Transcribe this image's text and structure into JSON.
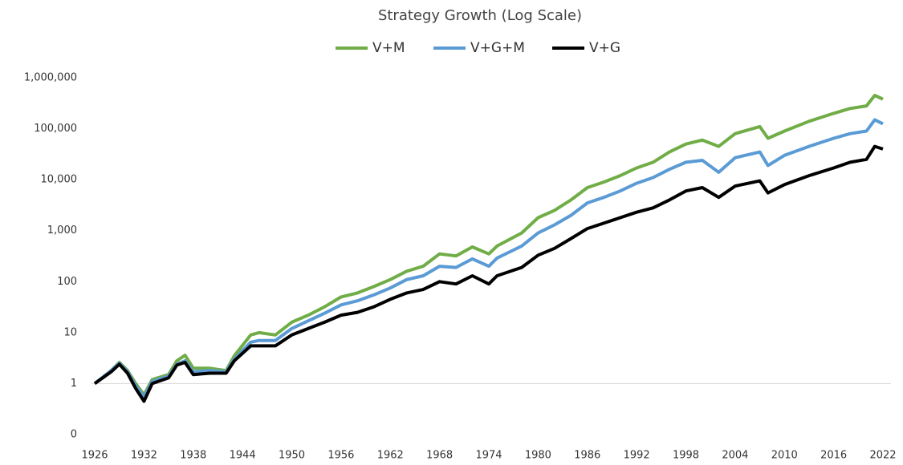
{
  "chart_data": {
    "type": "line",
    "title": "Strategy Growth (Log Scale)",
    "log_scale": true,
    "legend": "top",
    "x_axis_crosses": 1,
    "x": [
      1926,
      1928,
      1929,
      1930,
      1931,
      1932,
      1933,
      1935,
      1936,
      1937,
      1938,
      1940,
      1942,
      1943,
      1945,
      1946,
      1948,
      1950,
      1952,
      1954,
      1956,
      1958,
      1960,
      1962,
      1964,
      1966,
      1968,
      1970,
      1972,
      1974,
      1975,
      1978,
      1980,
      1982,
      1984,
      1986,
      1988,
      1990,
      1992,
      1994,
      1996,
      1998,
      2000,
      2002,
      2004,
      2007,
      2008,
      2010,
      2013,
      2016,
      2018,
      2020,
      2021,
      2022
    ],
    "xlim": [
      1926,
      2022
    ],
    "xticks": [
      1926,
      1932,
      1938,
      1944,
      1950,
      1956,
      1962,
      1968,
      1974,
      1980,
      1986,
      1992,
      1998,
      2004,
      2010,
      2016,
      2022
    ],
    "ylim": [
      0.1,
      1000000
    ],
    "yticks": [
      {
        "value": 0.1,
        "label": "0"
      },
      1,
      10,
      100,
      {
        "value": 1000,
        "label": "1,000"
      },
      {
        "value": 10000,
        "label": "10,000"
      },
      {
        "value": 100000,
        "label": "100,000"
      },
      {
        "value": 1000000,
        "label": "1,000,000"
      }
    ],
    "series": [
      {
        "name": "V+M",
        "color": "#70ad47",
        "values": [
          1,
          1.8,
          2.6,
          1.8,
          1.0,
          0.6,
          1.2,
          1.5,
          2.8,
          3.6,
          2.0,
          2.0,
          1.8,
          3.5,
          9,
          10,
          9,
          16,
          22,
          32,
          50,
          60,
          80,
          110,
          160,
          200,
          350,
          320,
          480,
          350,
          500,
          900,
          1800,
          2500,
          4000,
          7000,
          9000,
          12000,
          17000,
          22000,
          35000,
          50000,
          60000,
          45000,
          80000,
          110000,
          65000,
          90000,
          140000,
          200000,
          250000,
          280000,
          450000,
          380000
        ]
      },
      {
        "name": "V+G+M",
        "color": "#5b9bd5",
        "values": [
          1,
          1.8,
          2.5,
          1.7,
          0.9,
          0.55,
          1.1,
          1.4,
          2.4,
          2.8,
          1.7,
          1.8,
          1.7,
          3.0,
          6.5,
          7,
          7,
          12,
          17,
          24,
          35,
          42,
          55,
          75,
          110,
          130,
          200,
          190,
          280,
          200,
          290,
          500,
          900,
          1300,
          2000,
          3500,
          4500,
          6000,
          8500,
          11000,
          16000,
          22000,
          24000,
          14000,
          27000,
          35000,
          19000,
          30000,
          45000,
          65000,
          80000,
          90000,
          150000,
          125000
        ]
      },
      {
        "name": "V+G",
        "color": "#000000",
        "values": [
          1,
          1.7,
          2.4,
          1.6,
          0.8,
          0.45,
          1.0,
          1.3,
          2.3,
          2.6,
          1.5,
          1.6,
          1.6,
          2.8,
          5.5,
          5.5,
          5.5,
          9,
          12,
          16,
          22,
          25,
          32,
          45,
          60,
          70,
          100,
          90,
          130,
          90,
          130,
          190,
          330,
          450,
          700,
          1100,
          1400,
          1800,
          2300,
          2800,
          4000,
          6000,
          7000,
          4500,
          7500,
          9500,
          5500,
          8000,
          12000,
          17000,
          22000,
          25000,
          45000,
          40000
        ]
      }
    ]
  }
}
